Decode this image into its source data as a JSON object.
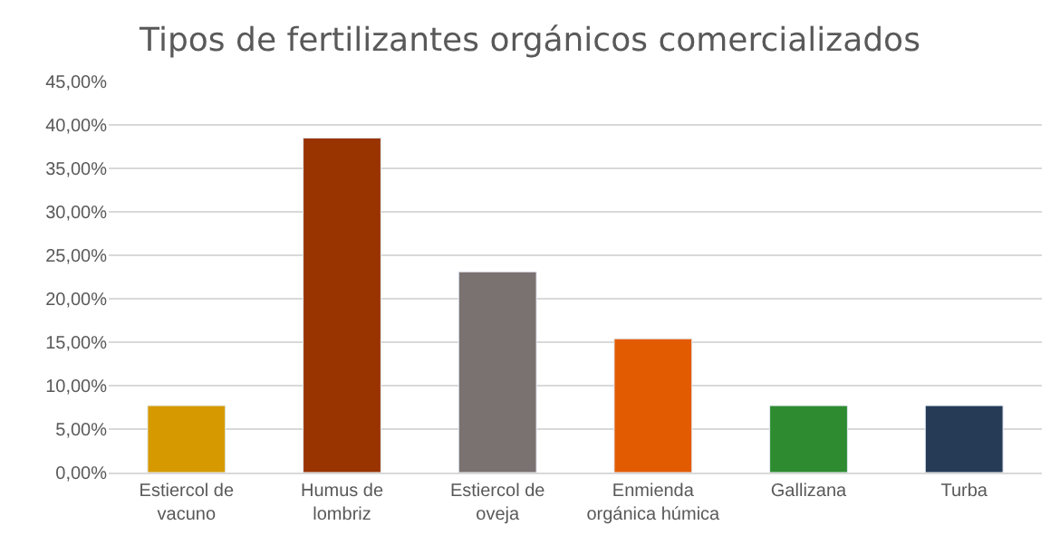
{
  "chart_data": {
    "type": "bar",
    "title": "Tipos de fertilizantes orgánicos comercializados",
    "categories": [
      "Estiercol de vacuno",
      "Humus de lombriz",
      "Estiercol de oveja",
      "Enmienda orgánica húmica",
      "Gallizana",
      "Turba"
    ],
    "values": [
      7.7,
      38.5,
      23.1,
      15.4,
      7.7,
      7.7
    ],
    "colors": [
      "#d69a00",
      "#993300",
      "#7a7171",
      "#e35b00",
      "#2e8b30",
      "#253b56"
    ],
    "ylim": [
      0,
      45
    ],
    "yticks": [
      {
        "value": 0,
        "label": "0,00%"
      },
      {
        "value": 5,
        "label": "5,00%"
      },
      {
        "value": 10,
        "label": "10,00%"
      },
      {
        "value": 15,
        "label": "15,00%"
      },
      {
        "value": 20,
        "label": "20,00%"
      },
      {
        "value": 25,
        "label": "25,00%"
      },
      {
        "value": 30,
        "label": "30,00%"
      },
      {
        "value": 35,
        "label": "35,00%"
      },
      {
        "value": 40,
        "label": "40,00%"
      },
      {
        "value": 45,
        "label": "45,00%"
      }
    ],
    "grid": "y"
  }
}
